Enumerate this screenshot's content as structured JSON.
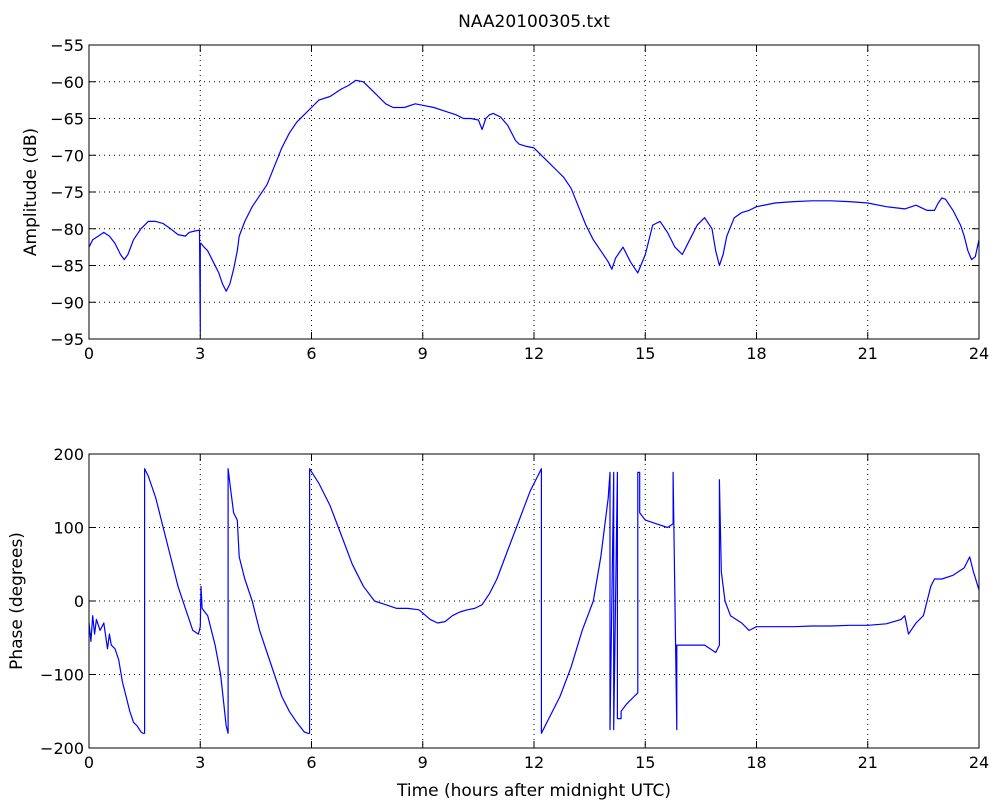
{
  "chart_data": [
    {
      "type": "line",
      "title": "NAA20100305.txt",
      "xlabel": "",
      "ylabel": "Amplitude (dB)",
      "xlim": [
        0,
        24
      ],
      "ylim": [
        -95,
        -55
      ],
      "xticks": [
        0,
        3,
        6,
        9,
        12,
        15,
        18,
        21,
        24
      ],
      "yticks": [
        -95,
        -90,
        -85,
        -80,
        -75,
        -70,
        -65,
        -60,
        -55
      ],
      "xtick_labels": [
        "0",
        "3",
        "6",
        "9",
        "12",
        "15",
        "18",
        "21",
        "24"
      ],
      "ytick_labels": [
        "−95",
        "−90",
        "−85",
        "−80",
        "−75",
        "−70",
        "−65",
        "−60",
        "−55"
      ],
      "grid": true,
      "color": "#0000ff",
      "series": [
        {
          "x": [
            0,
            0.1,
            0.25,
            0.4,
            0.55,
            0.7,
            0.85,
            0.95,
            1.05,
            1.2,
            1.4,
            1.6,
            1.8,
            2.0,
            2.2,
            2.4,
            2.6,
            2.7,
            2.85,
            2.98,
            3.0,
            3.0,
            3.02,
            3.1,
            3.2,
            3.35,
            3.5,
            3.6,
            3.7,
            3.8,
            3.9,
            4.0,
            4.05,
            4.2,
            4.4,
            4.6,
            4.8,
            5.0,
            5.2,
            5.4,
            5.6,
            5.8,
            6.0,
            6.2,
            6.5,
            6.8,
            7.0,
            7.2,
            7.4,
            7.6,
            7.8,
            8.0,
            8.2,
            8.5,
            8.8,
            9.0,
            9.3,
            9.6,
            9.9,
            10.1,
            10.3,
            10.5,
            10.6,
            10.7,
            10.8,
            10.9,
            11.1,
            11.3,
            11.5,
            11.6,
            11.8,
            12.0,
            12.2,
            12.4,
            12.6,
            12.8,
            13.0,
            13.2,
            13.4,
            13.6,
            13.8,
            14.0,
            14.1,
            14.2,
            14.4,
            14.6,
            14.8,
            15.0,
            15.2,
            15.4,
            15.6,
            15.8,
            16.0,
            16.2,
            16.4,
            16.6,
            16.8,
            16.9,
            17.0,
            17.1,
            17.2,
            17.4,
            17.6,
            17.8,
            18.0,
            18.5,
            19.0,
            19.5,
            20.0,
            20.5,
            21.0,
            21.5,
            22.0,
            22.3,
            22.6,
            22.8,
            22.9,
            23.0,
            23.1,
            23.3,
            23.5,
            23.6,
            23.7,
            23.8,
            23.9,
            24.0
          ],
          "y": [
            -82.5,
            -81.5,
            -81.0,
            -80.5,
            -81.0,
            -82.0,
            -83.5,
            -84.2,
            -83.5,
            -81.5,
            -80.0,
            -79.0,
            -79.0,
            -79.3,
            -80.0,
            -80.8,
            -81.0,
            -80.5,
            -80.3,
            -80.2,
            -94.0,
            -82.0,
            -82.0,
            -82.5,
            -83.0,
            -84.5,
            -86.0,
            -87.5,
            -88.5,
            -87.5,
            -85.5,
            -83.0,
            -81.0,
            -79.0,
            -77.0,
            -75.5,
            -74.0,
            -71.5,
            -69.0,
            -67.0,
            -65.5,
            -64.5,
            -63.5,
            -62.5,
            -62.0,
            -61.0,
            -60.5,
            -59.8,
            -60.0,
            -61.0,
            -62.0,
            -63.0,
            -63.5,
            -63.5,
            -63.0,
            -63.2,
            -63.5,
            -64.0,
            -64.5,
            -65.0,
            -65.0,
            -65.2,
            -66.5,
            -65.0,
            -64.5,
            -64.3,
            -64.8,
            -66.0,
            -68.0,
            -68.5,
            -68.8,
            -69.0,
            -70.0,
            -71.0,
            -72.0,
            -73.0,
            -74.5,
            -77.0,
            -79.5,
            -81.5,
            -83.0,
            -84.5,
            -85.5,
            -84.0,
            -82.5,
            -84.5,
            -86.0,
            -83.5,
            -79.5,
            -79.0,
            -80.5,
            -82.5,
            -83.5,
            -81.5,
            -79.5,
            -78.5,
            -80.0,
            -83.0,
            -85.0,
            -83.5,
            -81.0,
            -78.5,
            -77.8,
            -77.5,
            -77.0,
            -76.5,
            -76.3,
            -76.2,
            -76.2,
            -76.3,
            -76.5,
            -77.0,
            -77.3,
            -76.8,
            -77.5,
            -77.5,
            -76.5,
            -75.8,
            -76.0,
            -77.5,
            -79.5,
            -81.0,
            -83.0,
            -84.2,
            -83.8,
            -81.5
          ]
        }
      ]
    },
    {
      "type": "line",
      "title": "",
      "xlabel": "Time (hours after midnight UTC)",
      "ylabel": "Phase (degrees)",
      "xlim": [
        0,
        24
      ],
      "ylim": [
        -200,
        200
      ],
      "xticks": [
        0,
        3,
        6,
        9,
        12,
        15,
        18,
        21,
        24
      ],
      "yticks": [
        -200,
        -100,
        0,
        100,
        200
      ],
      "xtick_labels": [
        "0",
        "3",
        "6",
        "9",
        "12",
        "15",
        "18",
        "21",
        "24"
      ],
      "ytick_labels": [
        "−200",
        "−100",
        "0",
        "100",
        "200"
      ],
      "grid": true,
      "color": "#0000ff",
      "series": [
        {
          "x": [
            0,
            0.05,
            0.1,
            0.15,
            0.2,
            0.3,
            0.4,
            0.5,
            0.55,
            0.6,
            0.7,
            0.8,
            0.9,
            1.0,
            1.1,
            1.2,
            1.3,
            1.4,
            1.45,
            1.5,
            1.5,
            1.6,
            1.8,
            2.0,
            2.2,
            2.4,
            2.6,
            2.8,
            2.95,
            3.0,
            3.02,
            3.05,
            3.2,
            3.4,
            3.55,
            3.7,
            3.75,
            3.75,
            3.8,
            3.9,
            4.0,
            4.05,
            4.2,
            4.4,
            4.6,
            4.8,
            5.0,
            5.2,
            5.4,
            5.6,
            5.8,
            5.9,
            5.95,
            5.95,
            6.2,
            6.5,
            6.8,
            7.1,
            7.4,
            7.7,
            8.0,
            8.3,
            8.6,
            8.9,
            9.2,
            9.4,
            9.6,
            9.8,
            10.0,
            10.2,
            10.4,
            10.6,
            10.8,
            11.0,
            11.3,
            11.6,
            11.9,
            12.1,
            12.2,
            12.2,
            12.4,
            12.7,
            13.0,
            13.3,
            13.6,
            13.8,
            13.9,
            14.0,
            14.05,
            14.05,
            14.15,
            14.15,
            14.25,
            14.25,
            14.35,
            14.35,
            14.5,
            14.7,
            14.8,
            14.8,
            14.85,
            14.85,
            15.0,
            15.3,
            15.6,
            15.75,
            15.75,
            15.85,
            15.85,
            16.0,
            16.3,
            16.6,
            16.9,
            17.0,
            17.0,
            17.05,
            17.15,
            17.3,
            17.6,
            17.8,
            18.0,
            18.5,
            19.0,
            19.5,
            20.0,
            20.5,
            21.0,
            21.5,
            21.9,
            22.0,
            22.1,
            22.3,
            22.5,
            22.6,
            22.7,
            22.8,
            23.0,
            23.3,
            23.6,
            23.75,
            23.85,
            24.0
          ],
          "y": [
            -30,
            -55,
            -20,
            -45,
            -25,
            -40,
            -30,
            -65,
            -45,
            -60,
            -65,
            -80,
            -110,
            -130,
            -150,
            -165,
            -170,
            -178,
            -180,
            -180,
            180,
            170,
            140,
            100,
            60,
            20,
            -10,
            -40,
            -45,
            -35,
            20,
            -10,
            -20,
            -60,
            -100,
            -170,
            -180,
            180,
            160,
            120,
            110,
            60,
            30,
            0,
            -40,
            -70,
            -100,
            -130,
            -150,
            -165,
            -178,
            -180,
            -180,
            180,
            160,
            130,
            90,
            50,
            20,
            0,
            -5,
            -10,
            -10,
            -12,
            -25,
            -30,
            -28,
            -20,
            -15,
            -12,
            -10,
            -5,
            10,
            30,
            70,
            110,
            150,
            170,
            180,
            -180,
            -160,
            -130,
            -90,
            -40,
            0,
            60,
            100,
            140,
            175,
            -175,
            175,
            -175,
            175,
            -160,
            -160,
            -150,
            -140,
            -130,
            -125,
            175,
            175,
            120,
            110,
            105,
            100,
            105,
            175,
            -175,
            -60,
            -60,
            -60,
            -60,
            -70,
            -60,
            165,
            40,
            0,
            -20,
            -30,
            -40,
            -35,
            -35,
            -35,
            -34,
            -34,
            -33,
            -33,
            -31,
            -25,
            -20,
            -45,
            -30,
            -20,
            0,
            20,
            30,
            30,
            35,
            45,
            60,
            40,
            15
          ]
        }
      ]
    }
  ]
}
